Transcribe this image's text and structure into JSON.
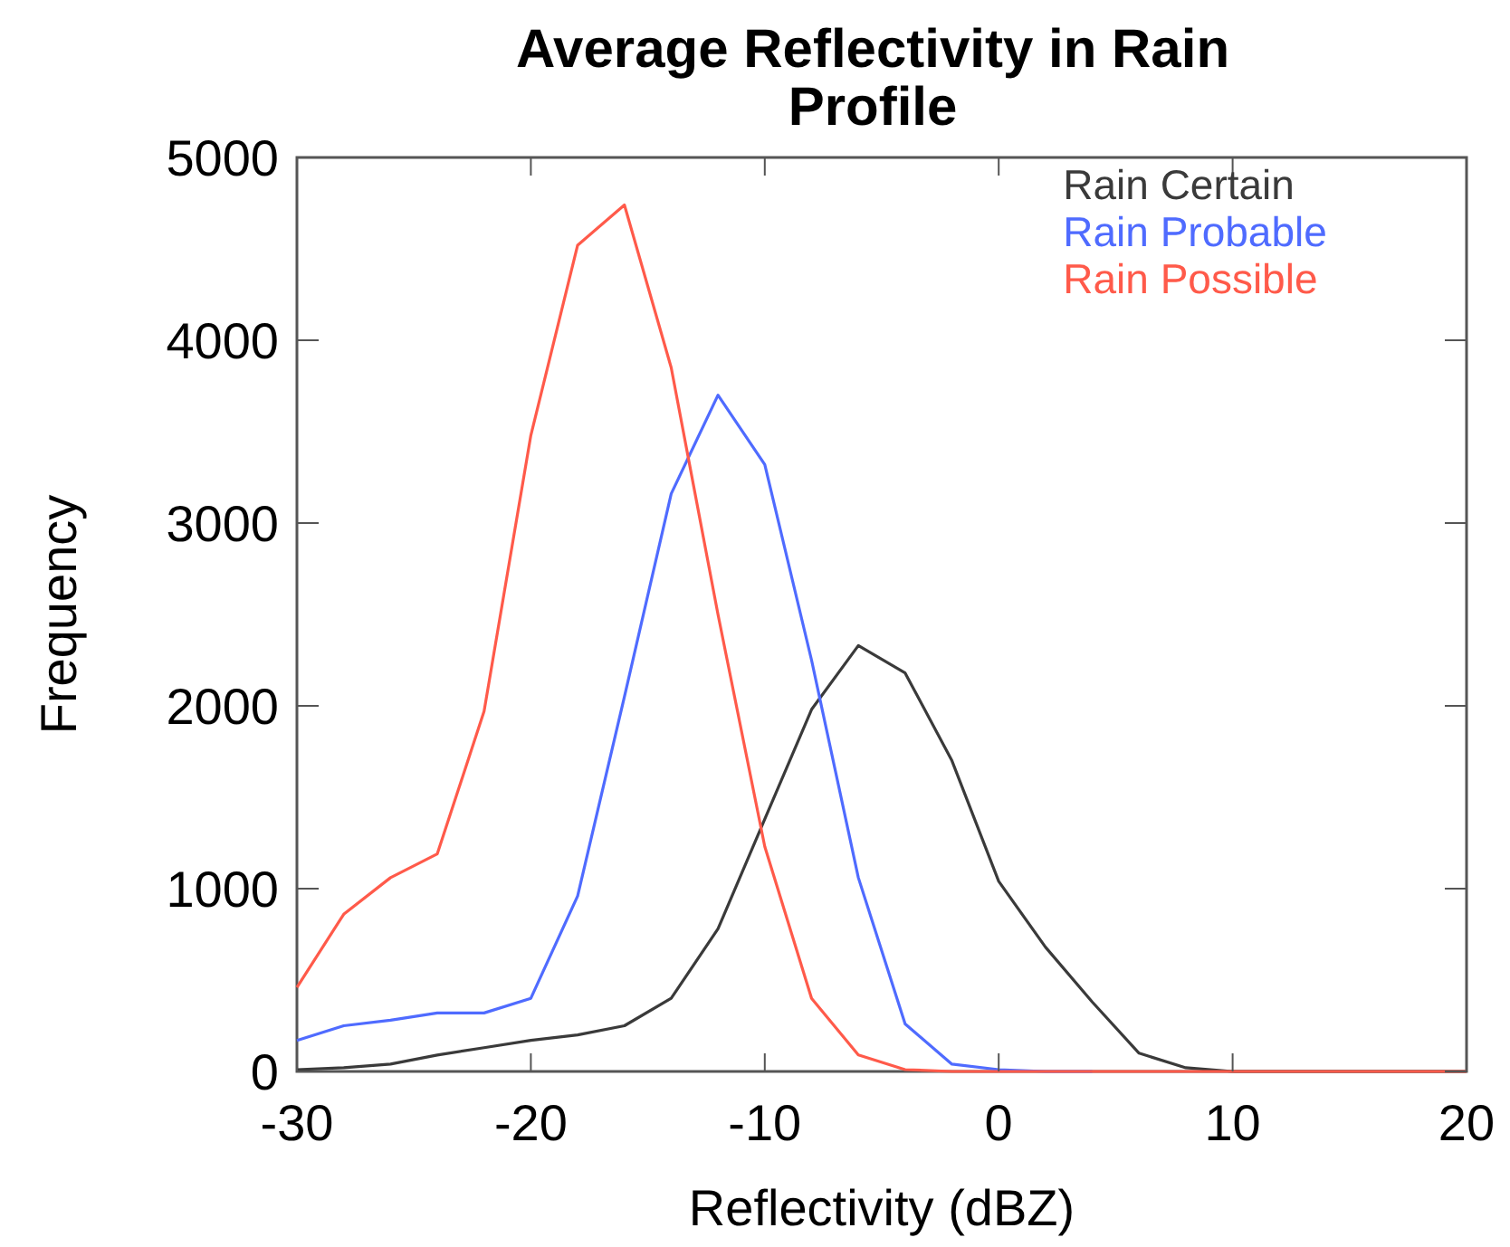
{
  "chart_data": {
    "type": "line",
    "title": "Average Reflectivity in Rain Profile",
    "xlabel": "Reflectivity (dBZ)",
    "ylabel": "Frequency",
    "x": [
      -30,
      -28,
      -26,
      -24,
      -22,
      -20,
      -18,
      -16,
      -14,
      -12,
      -10,
      -8,
      -6,
      -4,
      -2,
      0,
      2,
      4,
      6,
      8,
      10,
      12,
      14,
      16,
      18,
      20
    ],
    "series": [
      {
        "name": "Rain Certain",
        "color": "#3a3a3a",
        "values": [
          10,
          20,
          40,
          90,
          130,
          170,
          200,
          250,
          400,
          780,
          1380,
          1980,
          2330,
          2180,
          1700,
          1040,
          680,
          380,
          100,
          20,
          0,
          0,
          0,
          0,
          0,
          0
        ]
      },
      {
        "name": "Rain Probable",
        "color": "#4f6bff",
        "values": [
          170,
          250,
          280,
          320,
          320,
          400,
          960,
          2050,
          3160,
          3700,
          3320,
          2250,
          1060,
          260,
          40,
          10,
          0,
          0,
          null,
          null,
          null,
          null,
          null,
          null,
          null,
          null
        ]
      },
      {
        "name": "Rain Possible",
        "color": "#ff5a4a",
        "values": [
          460,
          860,
          1060,
          1190,
          1970,
          3480,
          4520,
          4740,
          3850,
          2500,
          1230,
          400,
          90,
          10,
          0,
          0,
          0,
          0,
          0,
          0,
          0,
          0,
          0,
          0,
          0,
          0
        ]
      }
    ],
    "xlim": [
      -30,
      20
    ],
    "xticks": [
      -30,
      -20,
      -10,
      0,
      10,
      20
    ],
    "ylim": [
      0,
      5000
    ],
    "yticks": [
      0,
      1000,
      2000,
      3000,
      4000,
      5000
    ],
    "legend": "top right",
    "grid": false
  }
}
